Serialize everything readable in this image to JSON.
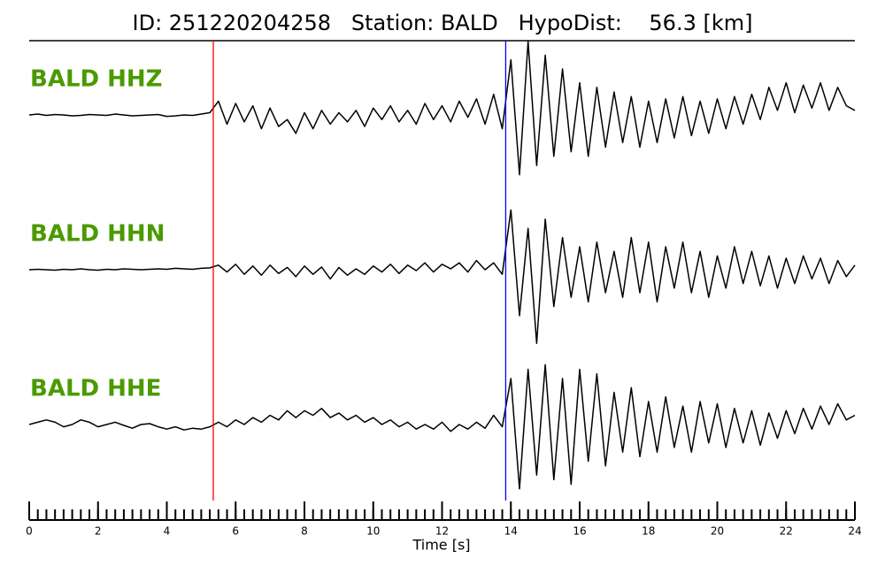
{
  "chart_data": {
    "type": "line",
    "title": "ID: 251220204258   Station: BALD   HypoDist:    56.3 [km]",
    "xlabel": "Time [s]",
    "xlim": [
      0,
      24
    ],
    "xticks": [
      0,
      2,
      4,
      6,
      8,
      10,
      12,
      14,
      16,
      18,
      20,
      22,
      24
    ],
    "xminor_step": 0.25,
    "picks": [
      {
        "x": 5.35,
        "color": "#ff0000"
      },
      {
        "x": 13.85,
        "color": "#0000ff"
      }
    ],
    "x": [
      0,
      0.25,
      0.5,
      0.75,
      1,
      1.25,
      1.5,
      1.75,
      2,
      2.25,
      2.5,
      2.75,
      3,
      3.25,
      3.5,
      3.75,
      4,
      4.25,
      4.5,
      4.75,
      5,
      5.25,
      5.5,
      5.75,
      6,
      6.25,
      6.5,
      6.75,
      7,
      7.25,
      7.5,
      7.75,
      8,
      8.25,
      8.5,
      8.75,
      9,
      9.25,
      9.5,
      9.75,
      10,
      10.25,
      10.5,
      10.75,
      11,
      11.25,
      11.5,
      11.75,
      12,
      12.25,
      12.5,
      12.75,
      13,
      13.25,
      13.5,
      13.75,
      14,
      14.25,
      14.5,
      14.75,
      15,
      15.25,
      15.5,
      15.75,
      16,
      16.25,
      16.5,
      16.75,
      17,
      17.25,
      17.5,
      17.75,
      18,
      18.25,
      18.5,
      18.75,
      19,
      19.25,
      19.5,
      19.75,
      20,
      20.25,
      20.5,
      20.75,
      21,
      21.25,
      21.5,
      21.75,
      22,
      22.25,
      22.5,
      22.75,
      23,
      23.25,
      23.5,
      23.75,
      24
    ],
    "label_color": "#4a9a00",
    "series": [
      {
        "name": "BALD HHZ",
        "color": "#000000",
        "values": [
          0,
          0.02,
          -0.01,
          0.01,
          0,
          -0.02,
          -0.01,
          0.01,
          0,
          -0.01,
          0.02,
          0,
          -0.02,
          -0.01,
          0,
          0.01,
          -0.03,
          -0.02,
          0,
          -0.01,
          0.02,
          0.05,
          0.3,
          -0.2,
          0.25,
          -0.15,
          0.2,
          -0.3,
          0.15,
          -0.25,
          -0.1,
          -0.4,
          0.05,
          -0.3,
          0.1,
          -0.2,
          0.05,
          -0.15,
          0.1,
          -0.25,
          0.15,
          -0.1,
          0.2,
          -0.15,
          0.1,
          -0.2,
          0.25,
          -0.1,
          0.2,
          -0.15,
          0.3,
          -0.05,
          0.35,
          -0.2,
          0.45,
          -0.3,
          1.2,
          -1.3,
          1.6,
          -1.1,
          1.3,
          -0.9,
          1.0,
          -0.8,
          0.7,
          -0.9,
          0.6,
          -0.7,
          0.5,
          -0.6,
          0.4,
          -0.7,
          0.3,
          -0.6,
          0.35,
          -0.5,
          0.4,
          -0.45,
          0.3,
          -0.4,
          0.35,
          -0.3,
          0.4,
          -0.2,
          0.45,
          -0.1,
          0.6,
          0.1,
          0.7,
          0.05,
          0.65,
          0.15,
          0.7,
          0.1,
          0.6,
          0.2,
          0.1
        ]
      },
      {
        "name": "BALD HHN",
        "color": "#000000",
        "values": [
          0,
          0.01,
          0,
          -0.01,
          0.01,
          0,
          0.02,
          0,
          -0.01,
          0.01,
          0,
          0.02,
          0.01,
          0,
          0.01,
          0.02,
          0.01,
          0.03,
          0.02,
          0.01,
          0.03,
          0.04,
          0.1,
          -0.05,
          0.12,
          -0.1,
          0.08,
          -0.12,
          0.1,
          -0.08,
          0.05,
          -0.15,
          0.08,
          -0.1,
          0.06,
          -0.2,
          0.05,
          -0.12,
          0.02,
          -0.1,
          0.08,
          -0.05,
          0.12,
          -0.08,
          0.1,
          -0.02,
          0.15,
          -0.05,
          0.12,
          0.02,
          0.15,
          -0.05,
          0.2,
          0,
          0.15,
          -0.1,
          1.3,
          -1.0,
          0.9,
          -1.6,
          1.1,
          -0.8,
          0.7,
          -0.6,
          0.5,
          -0.7,
          0.6,
          -0.5,
          0.4,
          -0.6,
          0.7,
          -0.5,
          0.6,
          -0.7,
          0.5,
          -0.4,
          0.6,
          -0.5,
          0.4,
          -0.6,
          0.3,
          -0.4,
          0.5,
          -0.3,
          0.4,
          -0.35,
          0.3,
          -0.4,
          0.25,
          -0.3,
          0.3,
          -0.2,
          0.25,
          -0.3,
          0.2,
          -0.15,
          0.1
        ]
      },
      {
        "name": "BALD HHE",
        "color": "#000000",
        "values": [
          0,
          0.05,
          0.1,
          0.05,
          -0.05,
          0,
          0.1,
          0.05,
          -0.05,
          0,
          0.05,
          -0.02,
          -0.08,
          0,
          0.02,
          -0.05,
          -0.1,
          -0.05,
          -0.12,
          -0.08,
          -0.1,
          -0.05,
          0.05,
          -0.05,
          0.1,
          0,
          0.15,
          0.05,
          0.2,
          0.1,
          0.3,
          0.15,
          0.3,
          0.2,
          0.35,
          0.15,
          0.25,
          0.1,
          0.2,
          0.05,
          0.15,
          0,
          0.1,
          -0.05,
          0.05,
          -0.1,
          0,
          -0.1,
          0.05,
          -0.15,
          0,
          -0.1,
          0.05,
          -0.08,
          0.2,
          -0.05,
          1.0,
          -1.4,
          1.2,
          -1.1,
          1.3,
          -1.2,
          1.0,
          -1.3,
          1.2,
          -0.8,
          1.1,
          -0.9,
          0.7,
          -0.6,
          0.8,
          -0.7,
          0.5,
          -0.6,
          0.6,
          -0.5,
          0.4,
          -0.6,
          0.5,
          -0.4,
          0.45,
          -0.5,
          0.35,
          -0.4,
          0.3,
          -0.45,
          0.25,
          -0.3,
          0.3,
          -0.2,
          0.35,
          -0.1,
          0.4,
          0,
          0.45,
          0.1,
          0.2
        ]
      }
    ]
  }
}
